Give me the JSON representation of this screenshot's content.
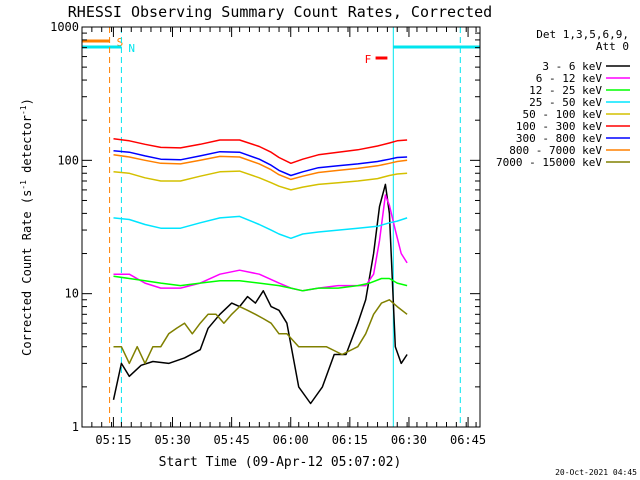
{
  "chart_data": {
    "type": "line",
    "title": "RHESSI Observing Summary Count Rates, Corrected",
    "xlabel": "Start Time (09-Apr-12 05:07:02)",
    "ylabel": "Corrected Count Rate (s⁻¹ detector⁻¹)",
    "ylabel_parts": [
      "Corrected Count Rate (s",
      "-1",
      " detector",
      "-1",
      ")"
    ],
    "y_scale": "log",
    "ylim": [
      1,
      1000
    ],
    "xlim_minutes_since_start": [
      0,
      101
    ],
    "x_ticks": [
      {
        "label": "05:15",
        "min": 7.97
      },
      {
        "label": "05:30",
        "min": 22.97
      },
      {
        "label": "05:45",
        "min": 37.97
      },
      {
        "label": "06:00",
        "min": 52.97
      },
      {
        "label": "06:15",
        "min": 67.97
      },
      {
        "label": "06:30",
        "min": 82.97
      },
      {
        "label": "06:45",
        "min": 97.97
      }
    ],
    "y_ticks": [
      {
        "label": "1",
        "value": 1
      },
      {
        "label": "10",
        "value": 10
      },
      {
        "label": "100",
        "value": 100
      },
      {
        "label": "1000",
        "value": 1000
      }
    ],
    "legend_title": [
      "Det 1,3,5,6,9,",
      "Att 0"
    ],
    "legend_position": "right",
    "footer": "20-Oct-2021 04:45",
    "flags": [
      {
        "label": "S",
        "color": "#ff8000",
        "start": 0,
        "end": 7.0
      },
      {
        "label": "N",
        "color": "#00e5ee",
        "start": 0,
        "end": 10.0
      },
      {
        "label": "F",
        "color": "#ff0000",
        "start": 74.5,
        "end": 77.5
      }
    ],
    "vertical_lines": [
      {
        "min": 7.0,
        "color": "#ff8000",
        "style": "dashed"
      },
      {
        "min": 10.0,
        "color": "#00e5ee",
        "style": "dashed"
      },
      {
        "min": 79.0,
        "color": "#00e5ee",
        "style": "solid"
      },
      {
        "min": 96.0,
        "color": "#00e5ee",
        "style": "dashed"
      }
    ],
    "series": [
      {
        "name": "3 - 6 keV",
        "color": "#000000",
        "x": [
          8,
          10,
          12,
          15,
          18,
          22,
          26,
          30,
          32,
          35,
          38,
          40,
          42,
          44,
          46,
          48,
          50,
          52,
          55,
          58,
          61,
          64,
          67,
          70,
          72,
          74,
          75.5,
          77,
          78,
          79.5,
          81,
          82.5
        ],
        "y": [
          1.6,
          3.0,
          2.4,
          2.9,
          3.1,
          3.0,
          3.3,
          3.8,
          5.5,
          7.0,
          8.5,
          8.0,
          9.5,
          8.5,
          10.5,
          8.0,
          7.5,
          6.0,
          2.0,
          1.5,
          2.0,
          3.5,
          3.5,
          6.0,
          9.0,
          20,
          45,
          66,
          40,
          4.0,
          3.0,
          3.5
        ]
      },
      {
        "name": "6 - 12 keV",
        "color": "#ff00ff",
        "x": [
          8,
          12,
          16,
          20,
          25,
          30,
          35,
          40,
          45,
          50,
          53,
          56,
          60,
          65,
          70,
          72,
          74,
          75.5,
          77,
          78,
          79.5,
          81,
          82.5
        ],
        "y": [
          14,
          14,
          12,
          11,
          11,
          12,
          14,
          15,
          14,
          12,
          11,
          10.5,
          11,
          11.5,
          11.5,
          11.5,
          14,
          25,
          55,
          46,
          30,
          20,
          17
        ]
      },
      {
        "name": "12 - 25 keV",
        "color": "#00ff00",
        "x": [
          8,
          12,
          16,
          20,
          25,
          30,
          35,
          40,
          45,
          50,
          53,
          56,
          60,
          65,
          70,
          73,
          76,
          78,
          80,
          82.5
        ],
        "y": [
          13.5,
          13,
          12.5,
          12,
          11.5,
          12,
          12.5,
          12.5,
          12,
          11.5,
          11,
          10.5,
          11,
          11,
          11.5,
          12,
          13,
          13,
          12,
          11.5
        ]
      },
      {
        "name": "25 - 50 keV",
        "color": "#00e5ff",
        "x": [
          8,
          12,
          16,
          20,
          25,
          30,
          35,
          40,
          45,
          48,
          50,
          53,
          56,
          60,
          65,
          70,
          75,
          78,
          80,
          82.5
        ],
        "y": [
          37,
          36,
          33,
          31,
          31,
          34,
          37,
          38,
          33,
          30,
          28,
          26,
          28,
          29,
          30,
          31,
          32,
          34,
          35,
          37
        ]
      },
      {
        "name": "50 - 100 keV",
        "color": "#d4c000",
        "x": [
          8,
          12,
          16,
          20,
          25,
          30,
          35,
          40,
          45,
          48,
          50,
          53,
          56,
          60,
          65,
          70,
          75,
          78,
          80,
          82.5
        ],
        "y": [
          82,
          80,
          74,
          70,
          70,
          76,
          82,
          83,
          74,
          68,
          64,
          60,
          63,
          66,
          68,
          70,
          73,
          77,
          79,
          80
        ]
      },
      {
        "name": "100 - 300 keV",
        "color": "#ff0000",
        "x": [
          8,
          12,
          16,
          20,
          25,
          30,
          35,
          40,
          45,
          48,
          50,
          53,
          56,
          60,
          65,
          70,
          75,
          78,
          80,
          82.5
        ],
        "y": [
          145,
          140,
          132,
          125,
          124,
          132,
          142,
          142,
          127,
          115,
          105,
          95,
          102,
          110,
          115,
          120,
          128,
          135,
          140,
          142
        ]
      },
      {
        "name": "300 - 800 keV",
        "color": "#0000ff",
        "x": [
          8,
          12,
          16,
          20,
          25,
          30,
          35,
          40,
          45,
          48,
          50,
          53,
          56,
          60,
          65,
          70,
          75,
          78,
          80,
          82.5
        ],
        "y": [
          118,
          115,
          108,
          102,
          101,
          108,
          116,
          115,
          102,
          92,
          84,
          77,
          82,
          88,
          91,
          94,
          98,
          102,
          105,
          106
        ]
      },
      {
        "name": "800 - 7000 keV",
        "color": "#ff8000",
        "x": [
          8,
          12,
          16,
          20,
          25,
          30,
          35,
          40,
          45,
          48,
          50,
          53,
          56,
          60,
          65,
          70,
          75,
          78,
          80,
          82.5
        ],
        "y": [
          110,
          106,
          100,
          95,
          94,
          100,
          107,
          106,
          94,
          85,
          78,
          72,
          76,
          81,
          84,
          87,
          91,
          95,
          98,
          100
        ]
      },
      {
        "name": "7000 - 15000 keV",
        "color": "#808000",
        "x": [
          8,
          10,
          12,
          14,
          16,
          18,
          20,
          22,
          24,
          26,
          28,
          30,
          32,
          34,
          36,
          38,
          40,
          42,
          44,
          46,
          48,
          50,
          52,
          55,
          58,
          62,
          66,
          70,
          72,
          74,
          76,
          78,
          80,
          82.5
        ],
        "y": [
          4.0,
          4.0,
          3.0,
          4.0,
          3.0,
          4.0,
          4.0,
          5.0,
          5.5,
          6.0,
          5.0,
          6.0,
          7.0,
          7.0,
          6.0,
          7.0,
          8.0,
          7.5,
          7.0,
          6.5,
          6.0,
          5.0,
          5.0,
          4.0,
          4.0,
          4.0,
          3.5,
          4.0,
          5.0,
          7.0,
          8.5,
          9.0,
          8.0,
          7.0
        ]
      }
    ]
  }
}
